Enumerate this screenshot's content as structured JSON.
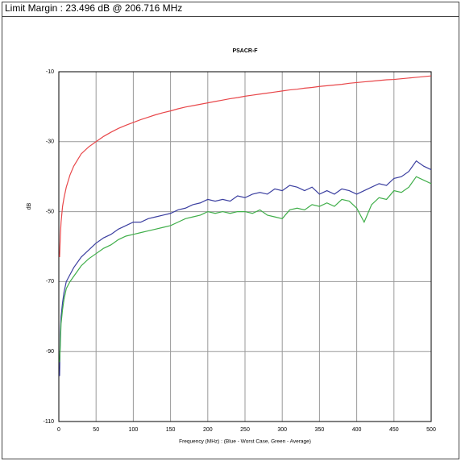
{
  "chart_data": {
    "type": "line",
    "header": "Limit Margin : 23.496 dB @ 206.716 MHz",
    "title": "PSACR-F",
    "x_label": "Frequency (MHz) : (Blue - Worst Case, Green - Average)",
    "y_label": "dB",
    "x": [
      1,
      2,
      3,
      5,
      7,
      10,
      15,
      20,
      30,
      40,
      50,
      60,
      70,
      80,
      90,
      100,
      110,
      120,
      130,
      140,
      150,
      160,
      170,
      180,
      190,
      200,
      210,
      220,
      230,
      240,
      250,
      260,
      270,
      280,
      290,
      300,
      310,
      320,
      330,
      340,
      350,
      360,
      370,
      380,
      390,
      400,
      410,
      420,
      430,
      440,
      450,
      460,
      470,
      480,
      490,
      500
    ],
    "series": [
      {
        "color": "#e8474a",
        "values": [
          -63,
          -57,
          -53,
          -48.5,
          -46,
          -43,
          -39.5,
          -37,
          -33.5,
          -31.5,
          -30,
          -28.5,
          -27.3,
          -26.2,
          -25.3,
          -24.5,
          -23.7,
          -23,
          -22.3,
          -21.7,
          -21.2,
          -20.6,
          -20.1,
          -19.7,
          -19.3,
          -18.9,
          -18.5,
          -18.1,
          -17.7,
          -17.4,
          -17,
          -16.7,
          -16.4,
          -16.1,
          -15.8,
          -15.5,
          -15.2,
          -15,
          -14.7,
          -14.5,
          -14.2,
          -14,
          -13.8,
          -13.6,
          -13.3,
          -13.1,
          -12.9,
          -12.7,
          -12.5,
          -12.3,
          -12.2,
          -12,
          -11.8,
          -11.6,
          -11.4,
          -11.2
        ]
      },
      {
        "color": "#3b3fa0",
        "values": [
          -97,
          -85,
          -80,
          -76,
          -73,
          -70,
          -68,
          -66,
          -63,
          -61,
          -59,
          -57.5,
          -56.5,
          -55,
          -54,
          -53,
          -53,
          -52,
          -51.5,
          -51,
          -50.5,
          -49.5,
          -49,
          -48,
          -47.5,
          -46.5,
          -47,
          -46.5,
          -47,
          -45.5,
          -46,
          -45,
          -44.5,
          -45,
          -43.5,
          -44,
          -42.5,
          -43,
          -44,
          -43,
          -45,
          -44,
          -45,
          -43.5,
          -44,
          -45,
          -44,
          -43,
          -42,
          -42.5,
          -40.5,
          -40,
          -38.5,
          -35.5,
          -37,
          -38
        ]
      },
      {
        "color": "#3fae49",
        "values": [
          -93,
          -88,
          -82,
          -78,
          -75,
          -72,
          -70,
          -68.5,
          -65.5,
          -63.5,
          -62,
          -60.5,
          -59.5,
          -58,
          -57,
          -56.5,
          -56,
          -55.5,
          -55,
          -54.5,
          -54,
          -53,
          -52,
          -51.5,
          -51,
          -50,
          -50.5,
          -50,
          -50.5,
          -50,
          -50,
          -50.5,
          -49.5,
          -51,
          -51.5,
          -52,
          -49.5,
          -49,
          -49.5,
          -48,
          -48.5,
          -47.5,
          -48.5,
          -46.5,
          -47,
          -49,
          -53,
          -48,
          -46,
          -46.5,
          -44,
          -44.5,
          -43,
          -40,
          -41,
          -42
        ]
      }
    ],
    "xlim": [
      0,
      500
    ],
    "xticks": [
      0,
      50,
      100,
      150,
      200,
      250,
      300,
      350,
      400,
      450,
      500
    ],
    "ylim": [
      -110,
      -10
    ],
    "yticks": [
      -10,
      -30,
      -50,
      -70,
      -90,
      -110
    ],
    "grid": true
  }
}
